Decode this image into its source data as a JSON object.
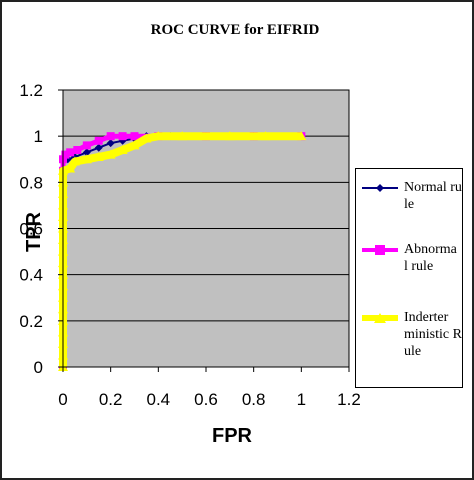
{
  "chart_data": {
    "type": "line",
    "title": "ROC CURVE for EIFRID",
    "xlabel": "FPR",
    "ylabel": "TPR",
    "xlim": [
      0,
      1.2
    ],
    "ylim": [
      0,
      1.2
    ],
    "xticks": [
      "0",
      "0.2",
      "0.4",
      "0.6",
      "0.8",
      "1",
      "1.2"
    ],
    "yticks": [
      "0",
      "0.2",
      "0.4",
      "0.6",
      "0.8",
      "1",
      "1.2"
    ],
    "grid": true,
    "legend_position": "right",
    "plot_background": "#c0c0c0",
    "series": [
      {
        "name": "Normal rule",
        "color": "#000080",
        "marker": "diamond",
        "points": [
          [
            0,
            0
          ],
          [
            0,
            0.05
          ],
          [
            0,
            0.1
          ],
          [
            0,
            0.15
          ],
          [
            0,
            0.2
          ],
          [
            0,
            0.25
          ],
          [
            0,
            0.3
          ],
          [
            0,
            0.35
          ],
          [
            0,
            0.4
          ],
          [
            0,
            0.45
          ],
          [
            0,
            0.5
          ],
          [
            0,
            0.55
          ],
          [
            0,
            0.6
          ],
          [
            0,
            0.65
          ],
          [
            0,
            0.7
          ],
          [
            0,
            0.75
          ],
          [
            0,
            0.8
          ],
          [
            0,
            0.85
          ],
          [
            0,
            0.9
          ],
          [
            0.02,
            0.9
          ],
          [
            0.05,
            0.91
          ],
          [
            0.1,
            0.93
          ],
          [
            0.15,
            0.95
          ],
          [
            0.2,
            0.97
          ],
          [
            0.25,
            0.98
          ],
          [
            0.3,
            0.99
          ],
          [
            0.35,
            1
          ],
          [
            0.45,
            1
          ],
          [
            0.6,
            1
          ],
          [
            0.8,
            1
          ],
          [
            1,
            1
          ]
        ]
      },
      {
        "name": "Abnormal rule",
        "color": "#ff00ff",
        "marker": "square",
        "points": [
          [
            0,
            0
          ],
          [
            0,
            0.05
          ],
          [
            0,
            0.1
          ],
          [
            0,
            0.15
          ],
          [
            0,
            0.2
          ],
          [
            0,
            0.25
          ],
          [
            0,
            0.3
          ],
          [
            0,
            0.35
          ],
          [
            0,
            0.4
          ],
          [
            0,
            0.45
          ],
          [
            0,
            0.5
          ],
          [
            0,
            0.55
          ],
          [
            0,
            0.6
          ],
          [
            0,
            0.65
          ],
          [
            0,
            0.7
          ],
          [
            0,
            0.75
          ],
          [
            0,
            0.8
          ],
          [
            0,
            0.85
          ],
          [
            0,
            0.9
          ],
          [
            0.01,
            0.92
          ],
          [
            0.03,
            0.93
          ],
          [
            0.06,
            0.94
          ],
          [
            0.1,
            0.96
          ],
          [
            0.15,
            0.98
          ],
          [
            0.2,
            1
          ],
          [
            0.25,
            1
          ],
          [
            0.3,
            1
          ],
          [
            0.4,
            1
          ],
          [
            0.6,
            1
          ],
          [
            0.8,
            1
          ],
          [
            1,
            1
          ]
        ]
      },
      {
        "name": "Inderterministic Rule",
        "color": "#ffff00",
        "marker": "triangle",
        "points": [
          [
            0,
            0
          ],
          [
            0,
            0.05
          ],
          [
            0,
            0.1
          ],
          [
            0,
            0.15
          ],
          [
            0,
            0.2
          ],
          [
            0,
            0.25
          ],
          [
            0,
            0.3
          ],
          [
            0,
            0.35
          ],
          [
            0,
            0.4
          ],
          [
            0,
            0.45
          ],
          [
            0,
            0.5
          ],
          [
            0,
            0.55
          ],
          [
            0,
            0.6
          ],
          [
            0,
            0.65
          ],
          [
            0,
            0.7
          ],
          [
            0,
            0.75
          ],
          [
            0,
            0.8
          ],
          [
            0,
            0.85
          ],
          [
            0.03,
            0.86
          ],
          [
            0.05,
            0.89
          ],
          [
            0.1,
            0.9
          ],
          [
            0.15,
            0.91
          ],
          [
            0.2,
            0.92
          ],
          [
            0.25,
            0.94
          ],
          [
            0.3,
            0.96
          ],
          [
            0.35,
            0.99
          ],
          [
            0.4,
            1
          ],
          [
            0.5,
            1
          ],
          [
            0.7,
            1
          ],
          [
            0.85,
            1
          ],
          [
            1,
            1
          ]
        ]
      }
    ],
    "legend_labels": [
      "Normal rule",
      "Abnorma l rule",
      "Inderter ministic Rule"
    ]
  }
}
